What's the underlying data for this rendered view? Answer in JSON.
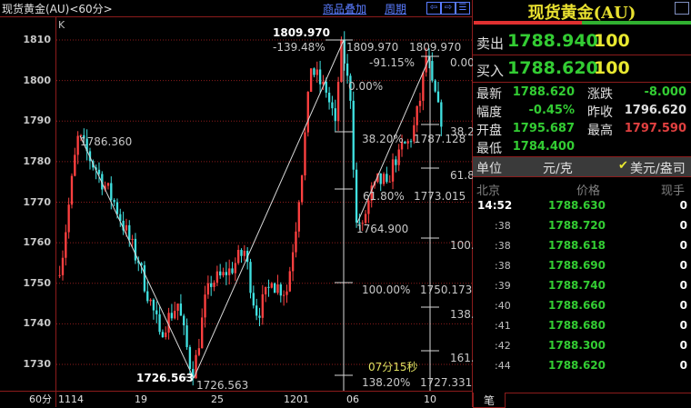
{
  "header": {
    "title": "现货黄金(AU)<60分>",
    "overlay_link": "商品叠加",
    "period_link": "周期",
    "nav_icons": [
      "arrow-left-icon",
      "arrow-right-icon",
      "layout-icon"
    ]
  },
  "chart_data": {
    "type": "candlestick",
    "panel_label": "K",
    "ylim": [
      1725,
      1815
    ],
    "yticks": [
      1810,
      1800,
      1790,
      1780,
      1770,
      1760,
      1750,
      1740,
      1730
    ],
    "xticks": [
      "1114",
      "19",
      "25",
      "1201",
      "06",
      "10"
    ],
    "period_label": "60分",
    "grid": true,
    "colors": {
      "up": "#ff4040",
      "down": "#40e0e0",
      "grid": "#8c1c1c"
    },
    "waypoints": [
      [
        0,
        1752
      ],
      [
        6,
        1786.36
      ],
      [
        12,
        1778
      ],
      [
        18,
        1770
      ],
      [
        26,
        1755
      ],
      [
        33,
        1738
      ],
      [
        39,
        1745
      ],
      [
        44,
        1726.563
      ],
      [
        49,
        1750
      ],
      [
        55,
        1752
      ],
      [
        61,
        1758
      ],
      [
        65,
        1742
      ],
      [
        70,
        1750
      ],
      [
        75,
        1748
      ],
      [
        79,
        1770
      ],
      [
        83,
        1803
      ],
      [
        88,
        1797
      ],
      [
        91,
        1790
      ],
      [
        93,
        1809.97
      ],
      [
        96,
        1795
      ],
      [
        98,
        1765
      ],
      [
        100,
        1764.9
      ],
      [
        104,
        1775
      ],
      [
        108,
        1775
      ],
      [
        112,
        1783
      ],
      [
        116,
        1785
      ],
      [
        119,
        1795
      ],
      [
        121,
        1806
      ],
      [
        123,
        1800
      ],
      [
        126,
        1788.62
      ]
    ],
    "annotations": {
      "high1": "1786.360",
      "low": "1726.563",
      "low_arrow": "1726.563",
      "high": "1809.970",
      "high_b": "1809.970",
      "fib1_ext": "-139.48%",
      "fib1_top": "1809.970",
      "fib1_top_pct": "0.00%",
      "fib1_382": "38.20%",
      "fib1_618": "61.80%",
      "fib1_low": "1764.900",
      "fib1_100": "100.00%",
      "fib1_1382": "138.20%",
      "fib2_top": "1809.970",
      "fib2_ext": "-91.15%",
      "fib2_0": "0.00",
      "fib2_382": "38.2",
      "fib2_382v": "1787.128",
      "fib2_618": "61.8",
      "fib2_618v": "1773.015",
      "fib2_100": "100.",
      "fib2_100v": "1750.173",
      "fib2_138": "138.",
      "fib2_161": "161.",
      "fib2_1382v": "1727.331",
      "countdown": "07分15秒"
    }
  },
  "quote": {
    "name": "现货黄金(AU)",
    "sell_label": "卖出",
    "sell_price": "1788.940",
    "sell_vol": "100",
    "buy_label": "买入",
    "buy_price": "1788.620",
    "buy_vol": "100",
    "stats": [
      {
        "l1": "最新",
        "v1": "1788.620",
        "c1": "#33cc33",
        "l2": "涨跌",
        "v2": "-8.000",
        "c2": "#33cc33"
      },
      {
        "l1": "幅度",
        "v1": "-0.45%",
        "c1": "#33cc33",
        "l2": "昨收",
        "v2": "1796.620",
        "c2": "#e0e0e0"
      },
      {
        "l1": "开盘",
        "v1": "1795.687",
        "c1": "#33cc33",
        "l2": "最高",
        "v2": "1797.590",
        "c2": "#e04040"
      },
      {
        "l1": "最低",
        "v1": "1784.400",
        "c1": "#33cc33",
        "l2": "",
        "v2": "",
        "c2": "#e0e0e0"
      }
    ],
    "unit_label": "单位",
    "unit_value": "元/克",
    "unit_option": "美元/盎司",
    "tick_headers": [
      "北京",
      "价格",
      "现手"
    ],
    "ticks": [
      {
        "t": "14:52",
        "p": "1788.630",
        "v": "0"
      },
      {
        "t": ":38",
        "p": "1788.720",
        "v": "0"
      },
      {
        "t": ":38",
        "p": "1788.618",
        "v": "0"
      },
      {
        "t": ":38",
        "p": "1788.690",
        "v": "0"
      },
      {
        "t": ":39",
        "p": "1788.740",
        "v": "0"
      },
      {
        "t": ":40",
        "p": "1788.660",
        "v": "0"
      },
      {
        "t": ":41",
        "p": "1788.680",
        "v": "0"
      },
      {
        "t": ":42",
        "p": "1788.300",
        "v": "0"
      },
      {
        "t": ":44",
        "p": "1788.620",
        "v": "0"
      }
    ],
    "tab": "笔"
  }
}
